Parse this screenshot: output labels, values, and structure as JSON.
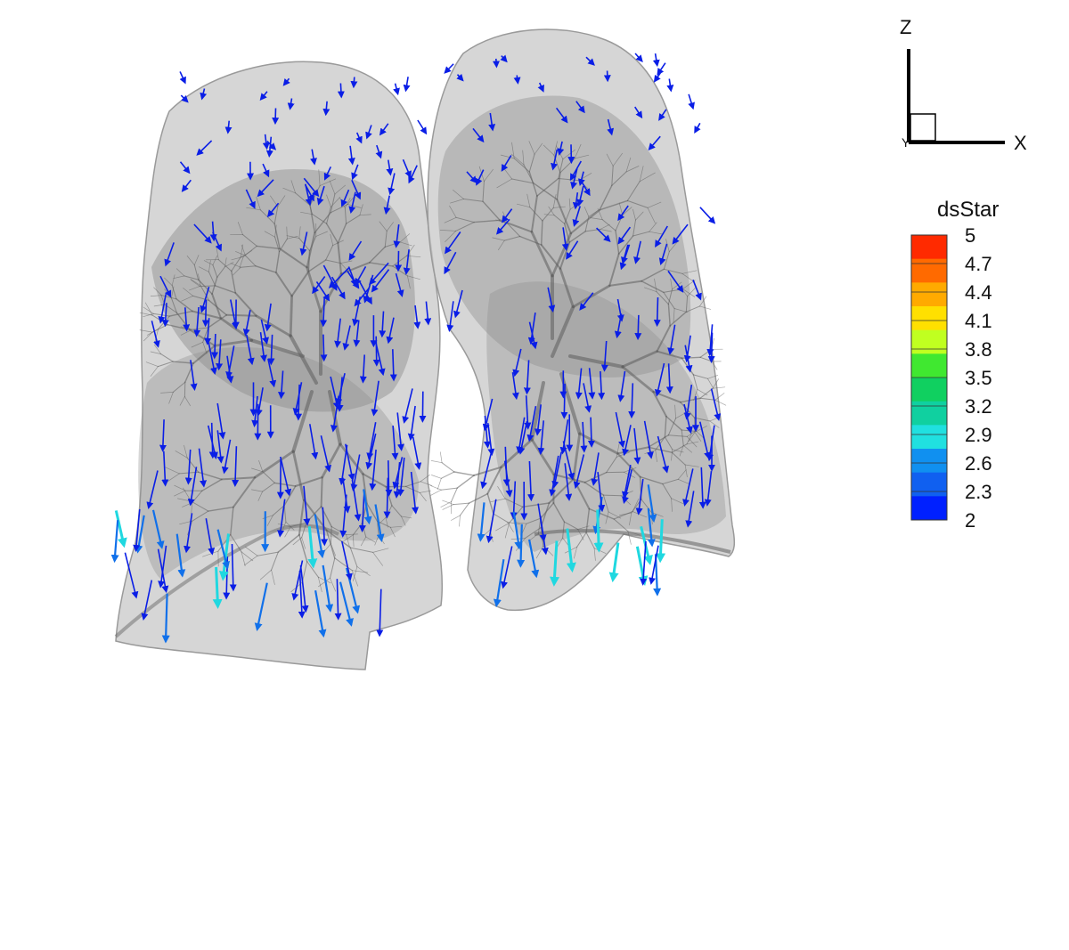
{
  "axes_triad": {
    "z_label": "Z",
    "x_label": "X",
    "y_label": "Y"
  },
  "legend": {
    "title": "dsStar",
    "ticks": [
      "5",
      "4.7",
      "4.4",
      "4.1",
      "3.8",
      "3.5",
      "3.2",
      "2.9",
      "2.6",
      "2.3",
      "2"
    ],
    "band_colors": [
      "#ff2a00",
      "#ff6a00",
      "#ffaa00",
      "#ffe000",
      "#c0ff20",
      "#40e830",
      "#10d060",
      "#10d0a0",
      "#20e0e0",
      "#1090f0",
      "#1060f0",
      "#0020ff"
    ]
  },
  "colors": {
    "arrow_low": "#0a1ee6",
    "arrow_mid": "#1070ea",
    "arrow_high": "#20d8e0",
    "lung_fill": "#c8c8c8",
    "lobe_fill": "#8c8c8c",
    "airway": "#5c5c5c"
  }
}
